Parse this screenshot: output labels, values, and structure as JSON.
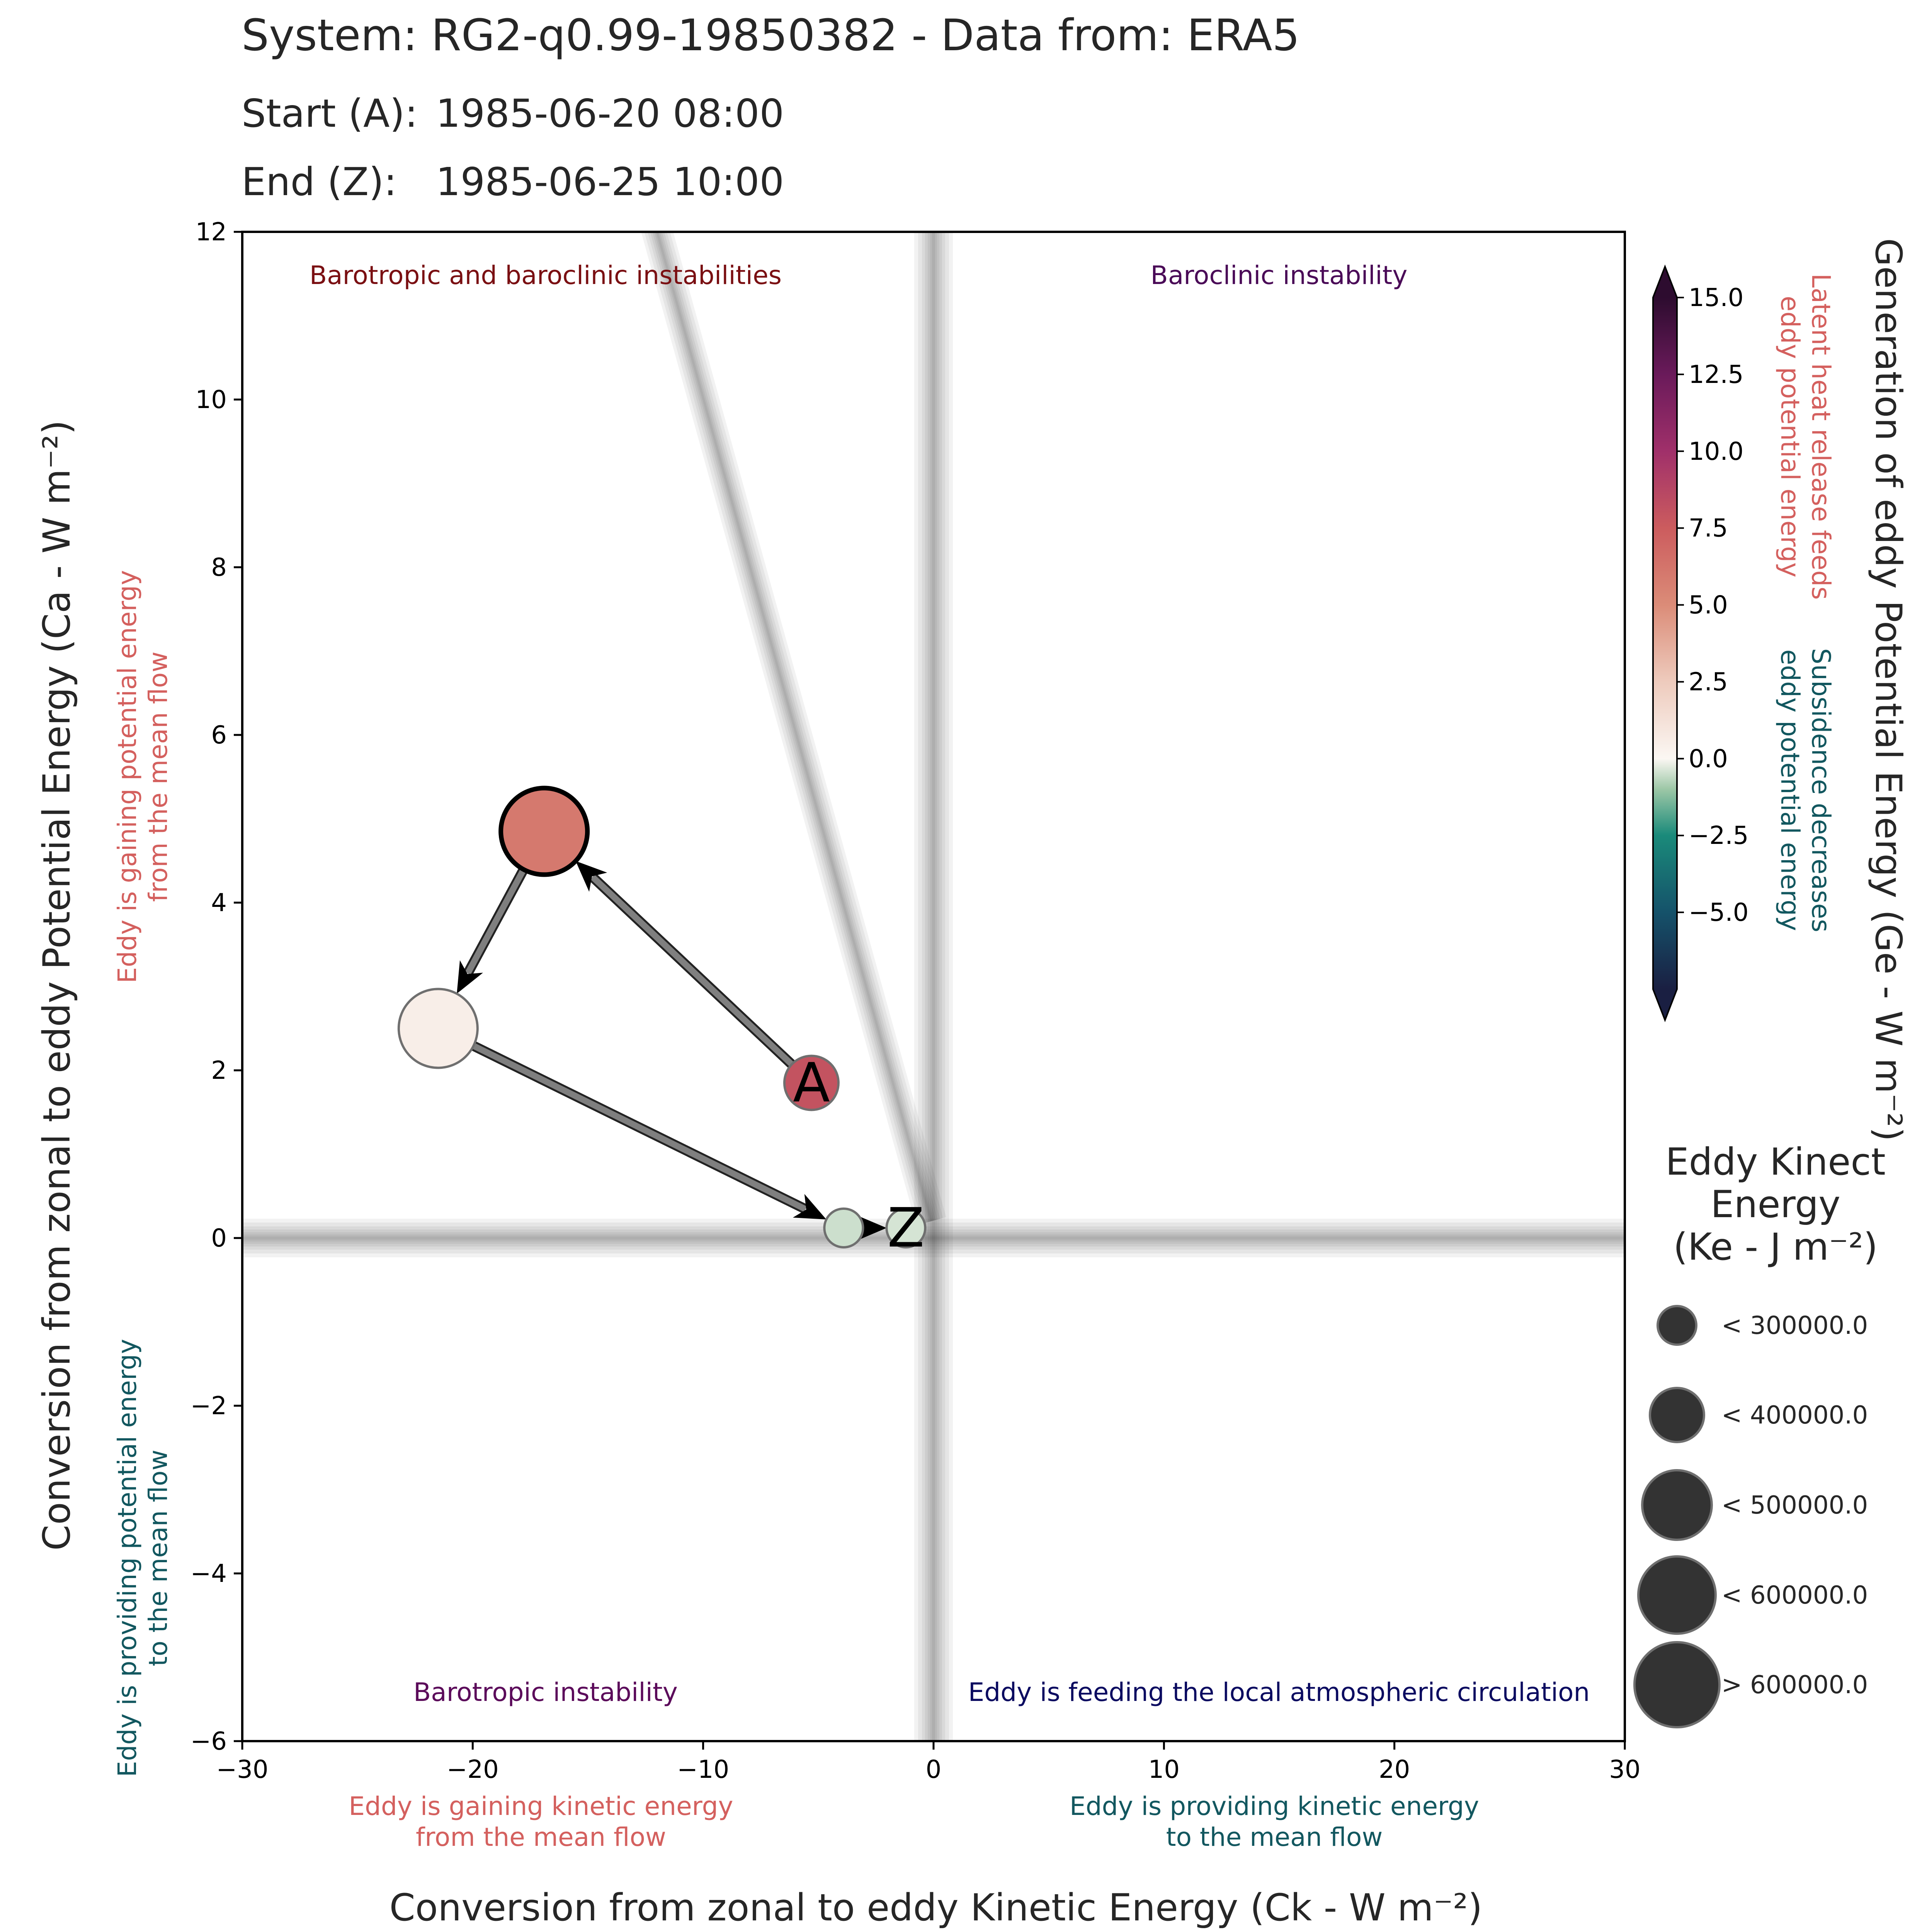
{
  "header": {
    "system_line": "System: RG2-q0.99-19850382 - Data from: ERA5",
    "start_label": "Start (A):",
    "start_value": "1985-06-20 08:00",
    "end_label": "End (Z):",
    "end_value": "1985-06-25 10:00"
  },
  "chart_data": {
    "type": "scatter",
    "xlabel": "Conversion from zonal to eddy Kinetic Energy (Ck -  W m⁻²)",
    "ylabel": "Conversion from zonal to eddy Potential Energy (Ca -  W m⁻²)",
    "xlim": [
      -30,
      30
    ],
    "ylim": [
      -6,
      12
    ],
    "xticks": [
      -30,
      -20,
      -10,
      0,
      10,
      20,
      30
    ],
    "xtick_labels": [
      "−30",
      "−20",
      "−10",
      "0",
      "10",
      "20",
      "30"
    ],
    "yticks": [
      -6,
      -4,
      -2,
      0,
      2,
      4,
      6,
      8,
      10,
      12
    ],
    "ytick_labels": [
      "−6",
      "−4",
      "−2",
      "0",
      "2",
      "4",
      "6",
      "8",
      "10",
      "12"
    ],
    "grid": false,
    "quadrant_labels": {
      "top_left": "Barotropic and baroclinic instabilities",
      "top_right": "Baroclinic instability",
      "bottom_left": "Barotropic instability",
      "bottom_right": "Eddy is feeding the local atmospheric circulation"
    },
    "x_side_labels": {
      "negative": "Eddy is gaining kinetic energy\nfrom the mean flow",
      "positive": "Eddy is providing kinetic energy\nto the mean flow"
    },
    "y_side_labels": {
      "positive": "Eddy is gaining potential energy\nfrom the mean flow",
      "negative": "Eddy is providing potential energy\nto the mean flow"
    },
    "points": [
      {
        "label": "A",
        "ck": -5.3,
        "ca": 1.85,
        "ge": 8.0,
        "ke_class": 1
      },
      {
        "label": "",
        "ck": -16.9,
        "ca": 4.85,
        "ge": 6.0,
        "ke_class": 4
      },
      {
        "label": "",
        "ck": -21.5,
        "ca": 2.5,
        "ge": 0.5,
        "ke_class": 3
      },
      {
        "label": "",
        "ck": -3.9,
        "ca": 0.12,
        "ge": -0.5,
        "ke_class": 0
      },
      {
        "label": "Z",
        "ck": -1.2,
        "ca": 0.12,
        "ge": -0.4,
        "ke_class": 0
      }
    ],
    "highlighted_point": 1,
    "reference_line": {
      "x1": -12.5,
      "y1": 12.5,
      "x2": -0.1,
      "y2": 0.2
    },
    "colorbar": {
      "title": "Generation of eddy Potential Energy (Ge -  W m⁻²)",
      "min": -7.5,
      "max": 15.0,
      "ticks": [
        15.0,
        12.5,
        10.0,
        7.5,
        5.0,
        2.5,
        0.0,
        -2.5,
        -5.0
      ],
      "tick_labels": [
        "15.0",
        "12.5",
        "10.0",
        "7.5",
        "5.0",
        "2.5",
        "0.0",
        "−2.5",
        "−5.0"
      ],
      "extend": "both",
      "stops": [
        {
          "v": -7.5,
          "c": "#1a1f42"
        },
        {
          "v": -5.0,
          "c": "#15526a"
        },
        {
          "v": -2.5,
          "c": "#1a8a7a"
        },
        {
          "v": -1.0,
          "c": "#9cc7a6"
        },
        {
          "v": 0.0,
          "c": "#fbf7f3"
        },
        {
          "v": 2.5,
          "c": "#eecbbd"
        },
        {
          "v": 5.0,
          "c": "#db8c78"
        },
        {
          "v": 7.5,
          "c": "#cc5c5e"
        },
        {
          "v": 10.0,
          "c": "#a0306a"
        },
        {
          "v": 12.5,
          "c": "#6a1a5a"
        },
        {
          "v": 15.0,
          "c": "#2d0c2f"
        }
      ],
      "pos_note": "Latent heat release feeds\neddy potential energy",
      "neg_note": "Subsidence decreases\neddy potential energy"
    },
    "size_legend": {
      "title": "Eddy Kinect\nEnergy\n(Ke -  J m⁻²)",
      "entries": [
        "< 300000.0",
        "< 400000.0",
        "< 500000.0",
        "< 600000.0",
        "> 600000.0"
      ]
    }
  },
  "colors": {
    "text_dark": "#262626",
    "positive_note": "#d4605e",
    "negative_note": "#12575f",
    "quad_top_left": "#7a0f12",
    "quad_top_right": "#4a0a57",
    "quad_bottom_left": "#5b0a5a",
    "quad_bottom_right": "#0a0a60",
    "legend_marker": "#333333",
    "arrow": "#7f7f7f"
  }
}
